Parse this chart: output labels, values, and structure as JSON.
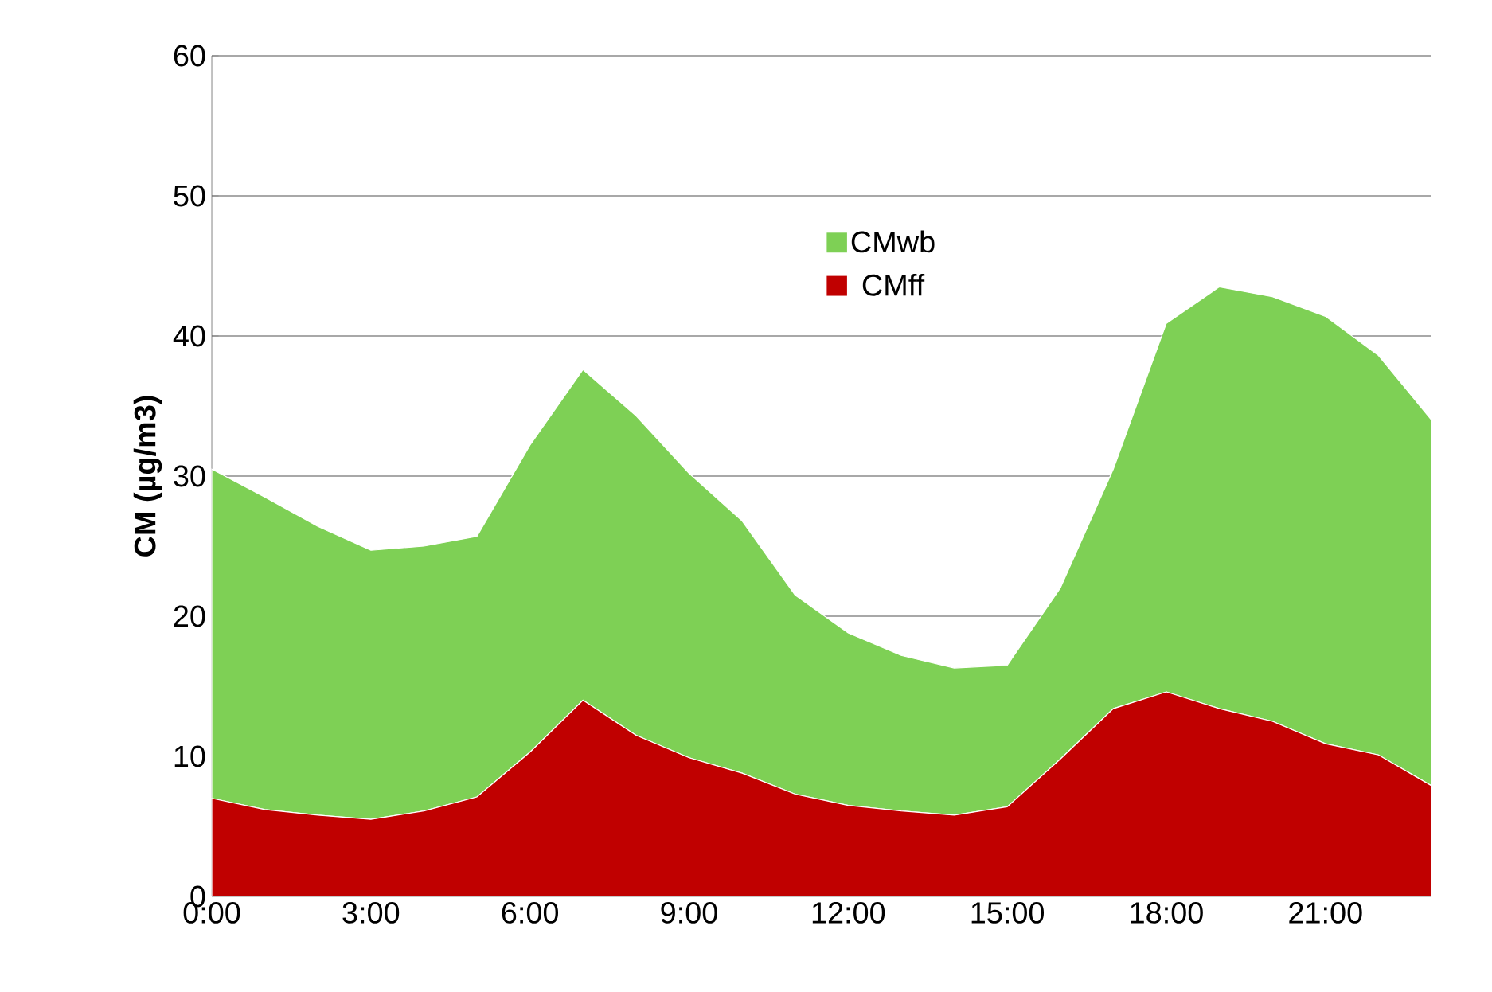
{
  "chart_data": {
    "type": "area",
    "stacked": true,
    "ylabel": "CM (µg/m3)",
    "x": [
      0,
      1,
      2,
      3,
      4,
      5,
      6,
      7,
      8,
      9,
      10,
      11,
      12,
      13,
      14,
      15,
      16,
      17,
      18,
      19,
      20,
      21,
      22,
      23
    ],
    "xlim": [
      0,
      23
    ],
    "xticks": [
      {
        "value": 0,
        "label": "0:00"
      },
      {
        "value": 3,
        "label": "3:00"
      },
      {
        "value": 6,
        "label": "6:00"
      },
      {
        "value": 9,
        "label": "9:00"
      },
      {
        "value": 12,
        "label": "12:00"
      },
      {
        "value": 15,
        "label": "15:00"
      },
      {
        "value": 18,
        "label": "18:00"
      },
      {
        "value": 21,
        "label": "21:00"
      }
    ],
    "ylim": [
      0,
      60
    ],
    "yticks": [
      0,
      10,
      20,
      30,
      40,
      50,
      60
    ],
    "grid": "y",
    "legend": "top",
    "series": [
      {
        "name": "CMff",
        "color": "#c00000",
        "values": [
          7.0,
          6.2,
          5.8,
          5.5,
          6.1,
          7.1,
          10.3,
          14.0,
          11.5,
          9.9,
          8.8,
          7.3,
          6.5,
          6.1,
          5.8,
          6.4,
          9.8,
          13.4,
          14.6,
          13.4,
          12.5,
          10.9,
          10.1,
          7.9
        ]
      },
      {
        "name": "CMwb",
        "color": "#7ed055",
        "values": [
          23.5,
          22.3,
          20.6,
          19.2,
          18.9,
          18.6,
          21.9,
          23.6,
          22.8,
          20.3,
          18.0,
          14.2,
          12.3,
          11.1,
          10.5,
          10.1,
          12.2,
          17.1,
          26.3,
          30.1,
          30.3,
          30.5,
          28.5,
          26.1
        ]
      }
    ]
  }
}
